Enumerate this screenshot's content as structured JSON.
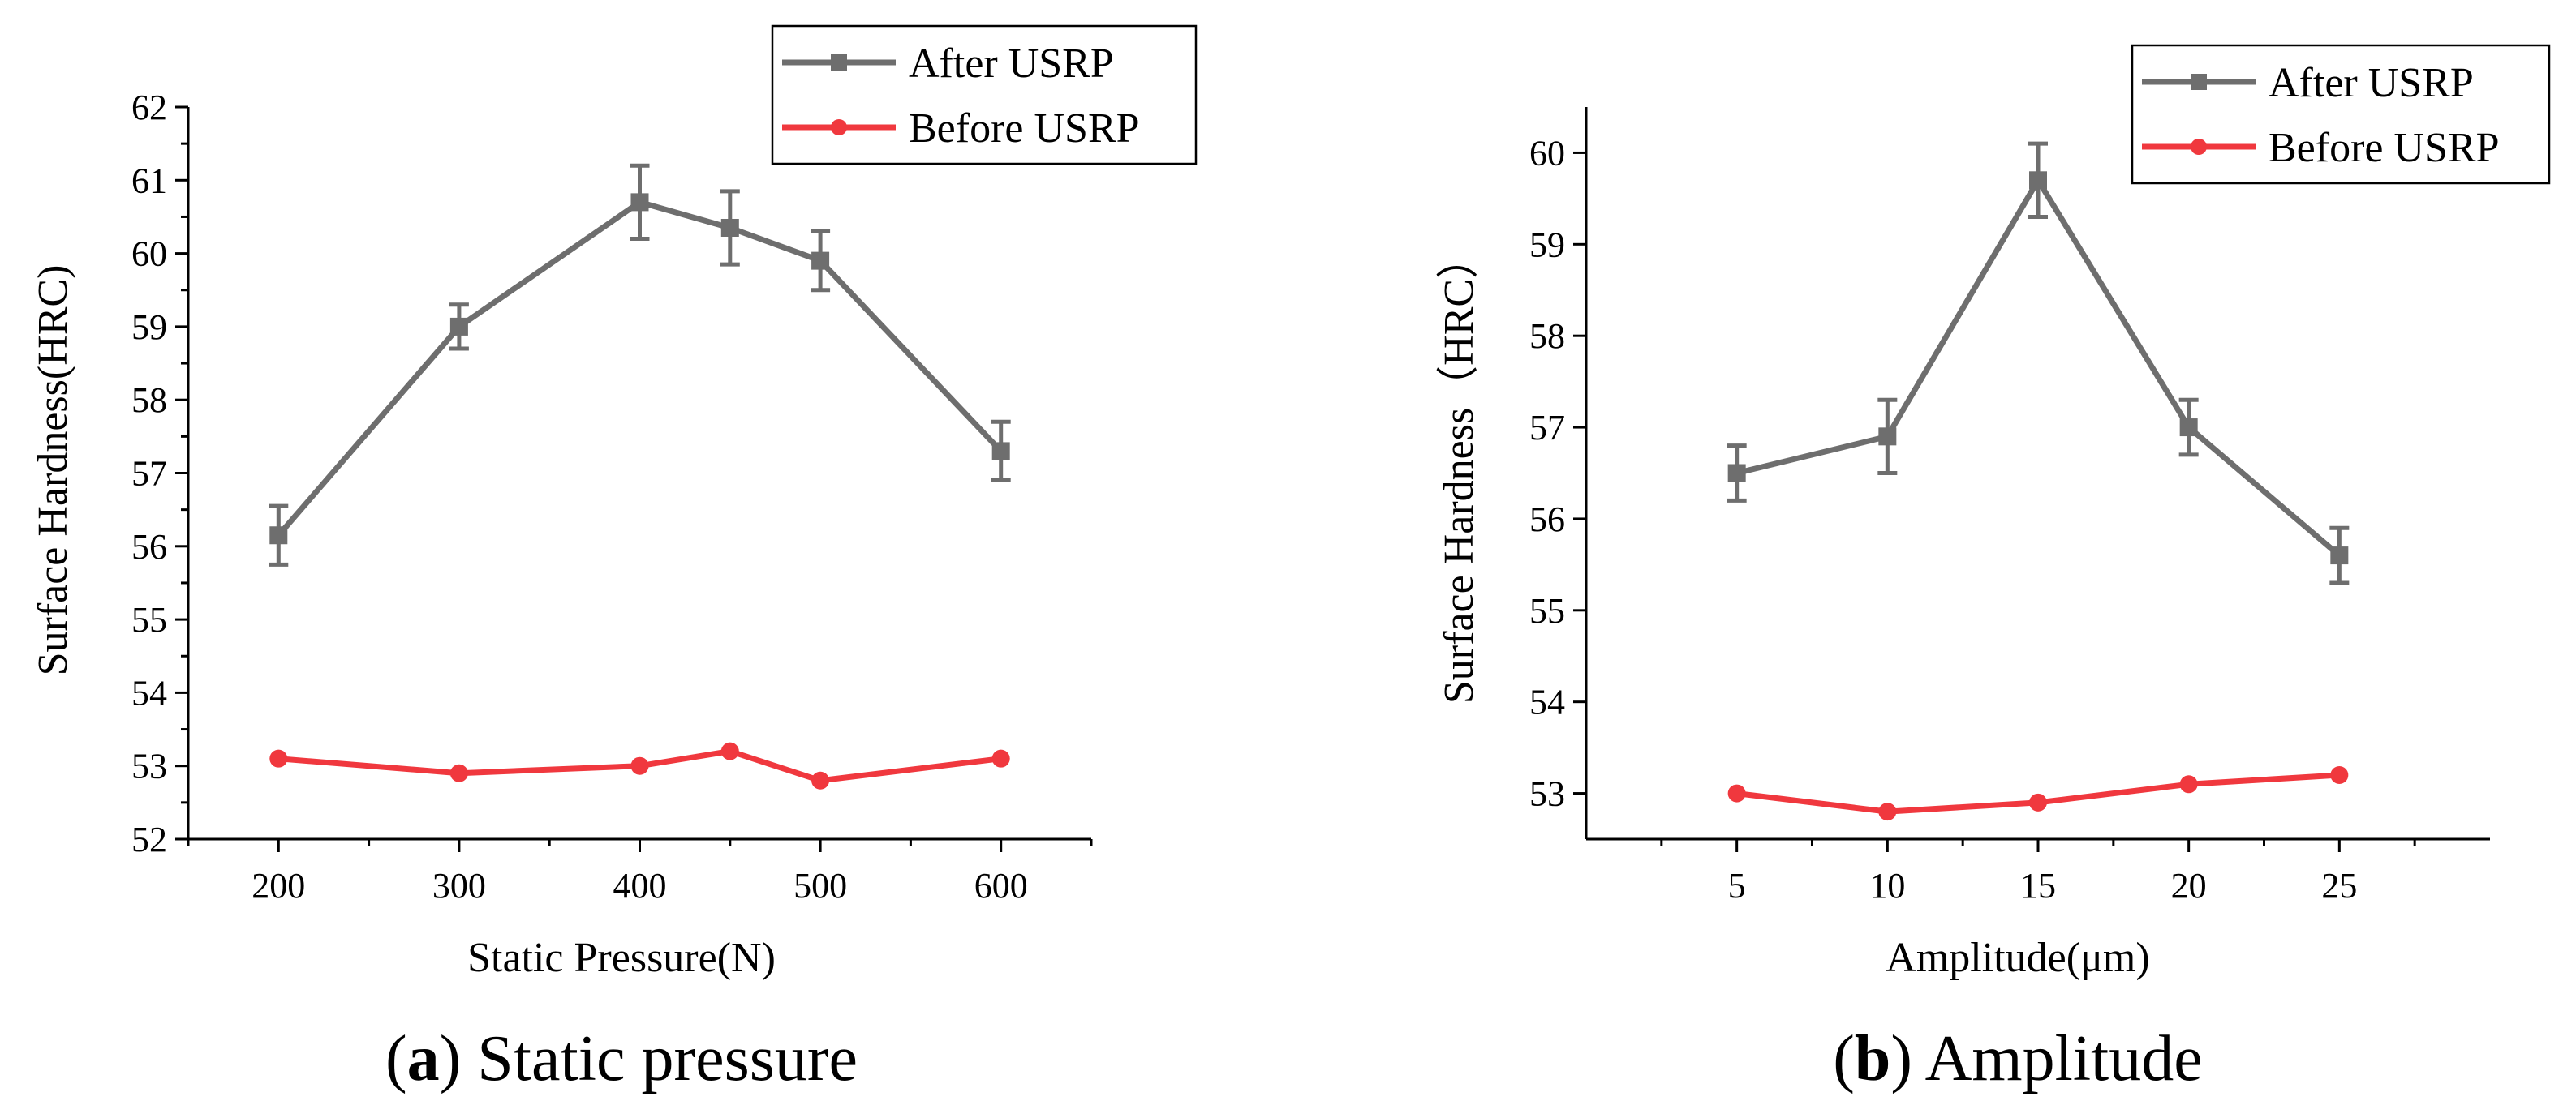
{
  "chart_data": [
    {
      "type": "line",
      "panel": "a",
      "caption_letter": "a",
      "caption_text": "Static pressure",
      "xlabel": "Static Pressure(N)",
      "ylabel": "Surface Hardness(HRC)",
      "xlim": [
        150,
        650
      ],
      "ylim": [
        52,
        62
      ],
      "x_ticks": [
        200,
        300,
        400,
        500,
        600
      ],
      "y_ticks": [
        52,
        53,
        54,
        55,
        56,
        57,
        58,
        59,
        60,
        61,
        62
      ],
      "legend_position": "top-right",
      "series": [
        {
          "name": "After USRP",
          "color": "#6e6e6e",
          "marker": "square",
          "x": [
            200,
            300,
            400,
            450,
            500,
            600
          ],
          "values": [
            56.15,
            59.0,
            60.7,
            60.35,
            59.9,
            57.3
          ],
          "errors": [
            0.4,
            0.3,
            0.5,
            0.5,
            0.4,
            0.4
          ]
        },
        {
          "name": "Before USRP",
          "color": "#f0383e",
          "marker": "circle",
          "x": [
            200,
            300,
            400,
            450,
            500,
            600
          ],
          "values": [
            53.1,
            52.9,
            53.0,
            53.2,
            52.8,
            53.1
          ]
        }
      ]
    },
    {
      "type": "line",
      "panel": "b",
      "caption_letter": "b",
      "caption_text": "Amplitude",
      "xlabel": "Amplitude(μm)",
      "ylabel": "Surface Hardness（HRC）",
      "xlim": [
        0,
        30
      ],
      "ylim": [
        52.5,
        60.5
      ],
      "x_ticks": [
        5,
        10,
        15,
        20,
        25
      ],
      "y_ticks": [
        53,
        54,
        55,
        56,
        57,
        58,
        59,
        60
      ],
      "legend_position": "top-right",
      "series": [
        {
          "name": "After USRP",
          "color": "#6e6e6e",
          "marker": "square",
          "x": [
            5,
            10,
            15,
            20,
            25
          ],
          "values": [
            56.5,
            56.9,
            59.7,
            57.0,
            55.6
          ],
          "errors": [
            0.3,
            0.4,
            0.4,
            0.3,
            0.3
          ]
        },
        {
          "name": "Before USRP",
          "color": "#f0383e",
          "marker": "circle",
          "x": [
            5,
            10,
            15,
            20,
            25
          ],
          "values": [
            53.0,
            52.8,
            52.9,
            53.1,
            53.2
          ]
        }
      ]
    }
  ]
}
